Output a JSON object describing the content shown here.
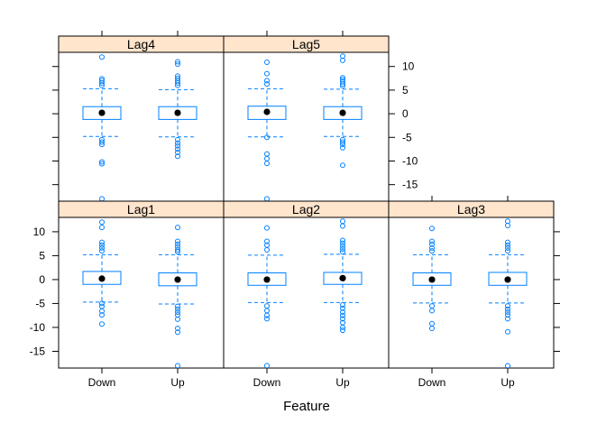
{
  "chart_data": {
    "type": "boxplot",
    "xlabel": "Feature",
    "categories": [
      "Down",
      "Up"
    ],
    "ylim": [
      -18.5,
      13
    ],
    "y_ticks": [
      10,
      5,
      0,
      -5,
      -10,
      -15
    ],
    "colors": {
      "box": "#0080ff",
      "strip_fill": "#ffe5cc",
      "median_dot": "#000000"
    },
    "panels": [
      {
        "name": "Lag4",
        "groups": [
          {
            "category": "Down",
            "median": 0.2,
            "q1": -1.2,
            "q3": 1.5,
            "whisker_low": -4.8,
            "whisker_high": 5.3,
            "outliers": [
              12.0,
              7.4,
              7.0,
              6.5,
              6.0,
              -5.5,
              -6.0,
              -6.5,
              -10.2,
              -10.6,
              -18.0
            ]
          },
          {
            "category": "Up",
            "median": 0.2,
            "q1": -1.2,
            "q3": 1.5,
            "whisker_low": -4.9,
            "whisker_high": 5.1,
            "outliers": [
              11.0,
              10.5,
              8.0,
              7.5,
              7.0,
              6.5,
              6.0,
              -5.5,
              -6.2,
              -6.8,
              -7.5,
              -8.2,
              -9.0
            ]
          }
        ]
      },
      {
        "name": "Lag5",
        "groups": [
          {
            "category": "Down",
            "median": 0.4,
            "q1": -1.2,
            "q3": 1.6,
            "whisker_low": -4.9,
            "whisker_high": 5.3,
            "outliers": [
              10.9,
              8.5,
              7.0,
              6.3,
              -5.0,
              -8.5,
              -9.5,
              -10.5,
              -18.0
            ]
          },
          {
            "category": "Up",
            "median": 0.2,
            "q1": -1.2,
            "q3": 1.5,
            "whisker_low": -4.8,
            "whisker_high": 5.2,
            "outliers": [
              12.2,
              11.3,
              7.6,
              7.2,
              6.8,
              6.3,
              5.9,
              -5.5,
              -6.0,
              -6.5,
              -7.2,
              -10.9
            ]
          }
        ]
      },
      {
        "name": "Lag1",
        "groups": [
          {
            "category": "Down",
            "median": 0.2,
            "q1": -1.0,
            "q3": 1.7,
            "whisker_low": -4.7,
            "whisker_high": 5.2,
            "outliers": [
              12.0,
              10.9,
              7.8,
              7.2,
              6.6,
              6.0,
              -5.0,
              -5.6,
              -6.6,
              -7.4,
              -9.3
            ]
          },
          {
            "category": "Up",
            "median": 0.0,
            "q1": -1.3,
            "q3": 1.4,
            "whisker_low": -5.1,
            "whisker_high": 5.2,
            "outliers": [
              10.9,
              8.0,
              7.4,
              6.8,
              6.2,
              5.8,
              -5.6,
              -6.2,
              -6.8,
              -7.4,
              -8.3,
              -10.2,
              -11.0,
              -18.0
            ]
          }
        ]
      },
      {
        "name": "Lag2",
        "groups": [
          {
            "category": "Down",
            "median": 0.0,
            "q1": -1.2,
            "q3": 1.4,
            "whisker_low": -4.8,
            "whisker_high": 5.1,
            "outliers": [
              10.8,
              8.0,
              7.2,
              6.2,
              -5.5,
              -6.5,
              -7.5,
              -8.2,
              -18.0
            ]
          },
          {
            "category": "Up",
            "median": 0.3,
            "q1": -1.0,
            "q3": 1.5,
            "whisker_low": -4.8,
            "whisker_high": 5.3,
            "outliers": [
              12.2,
              11.2,
              8.2,
              7.6,
              7.0,
              6.4,
              5.8,
              -5.3,
              -6.0,
              -6.8,
              -7.5,
              -8.2,
              -9.0,
              -10.0,
              -10.6
            ]
          }
        ]
      },
      {
        "name": "Lag3",
        "groups": [
          {
            "category": "Down",
            "median": 0.0,
            "q1": -1.2,
            "q3": 1.4,
            "whisker_low": -4.9,
            "whisker_high": 5.2,
            "outliers": [
              10.7,
              8.0,
              7.4,
              6.6,
              6.0,
              -5.5,
              -6.5,
              -9.2,
              -10.2
            ]
          },
          {
            "category": "Up",
            "median": 0.0,
            "q1": -1.2,
            "q3": 1.5,
            "whisker_low": -4.9,
            "whisker_high": 5.2,
            "outliers": [
              12.2,
              11.3,
              7.8,
              7.2,
              6.6,
              6.0,
              -5.5,
              -6.2,
              -6.8,
              -7.4,
              -8.2,
              -10.9,
              -18.0
            ]
          }
        ]
      }
    ]
  }
}
